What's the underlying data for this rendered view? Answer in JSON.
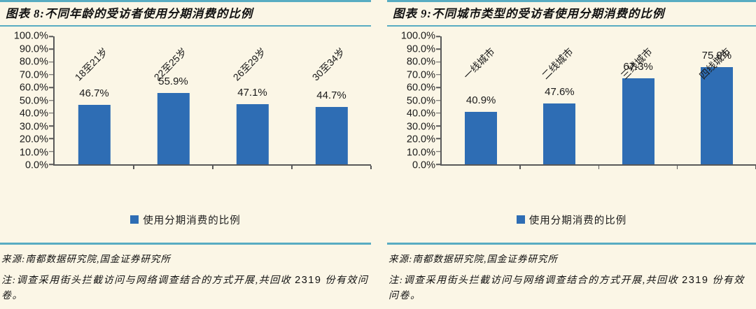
{
  "page": {
    "background": "#FBF6E6",
    "accent_teal": "#58ACC2",
    "bar_color": "#2E6DB4",
    "axis_color": "#595959"
  },
  "chart_data": [
    {
      "type": "bar",
      "title": "图表 8:不同年龄的受访者使用分期消费的比例",
      "categories": [
        "18至21岁",
        "22至25岁",
        "26至29岁",
        "30至34岁"
      ],
      "values": [
        46.7,
        55.9,
        47.1,
        44.7
      ],
      "value_labels": [
        "46.7%",
        "55.9%",
        "47.1%",
        "44.7%"
      ],
      "legend": "使用分期消费的比例",
      "xlabel": "",
      "ylabel": "",
      "ylim": [
        0,
        100
      ],
      "ytick_step": 10,
      "yticks": [
        "100.0%",
        "90.0%",
        "80.0%",
        "70.0%",
        "60.0%",
        "50.0%",
        "40.0%",
        "30.0%",
        "20.0%",
        "10.0%",
        "0.0%"
      ],
      "grid": false,
      "legend_position": "bottom"
    },
    {
      "type": "bar",
      "title": "图表 9:不同城市类型的受访者使用分期消费的比例",
      "categories": [
        "一线城市",
        "二线城市",
        "三线城市",
        "四线城市"
      ],
      "values": [
        40.9,
        47.6,
        67.3,
        75.9
      ],
      "value_labels": [
        "40.9%",
        "47.6%",
        "67.3%",
        "75.9%"
      ],
      "legend": "使用分期消费的比例",
      "xlabel": "",
      "ylabel": "",
      "ylim": [
        0,
        100
      ],
      "ytick_step": 10,
      "yticks": [
        "100.0%",
        "90.0%",
        "80.0%",
        "70.0%",
        "60.0%",
        "50.0%",
        "40.0%",
        "30.0%",
        "20.0%",
        "10.0%",
        "0.0%"
      ],
      "grid": false,
      "legend_position": "bottom"
    }
  ],
  "footer": {
    "source": "来源:南都数据研究院,国金证券研究所",
    "note_prefix": "注:调查采用街头拦截访问与网络调查结合的方式开展,共回收 ",
    "note_number": "2319",
    "note_suffix": " 份有效问卷。"
  }
}
